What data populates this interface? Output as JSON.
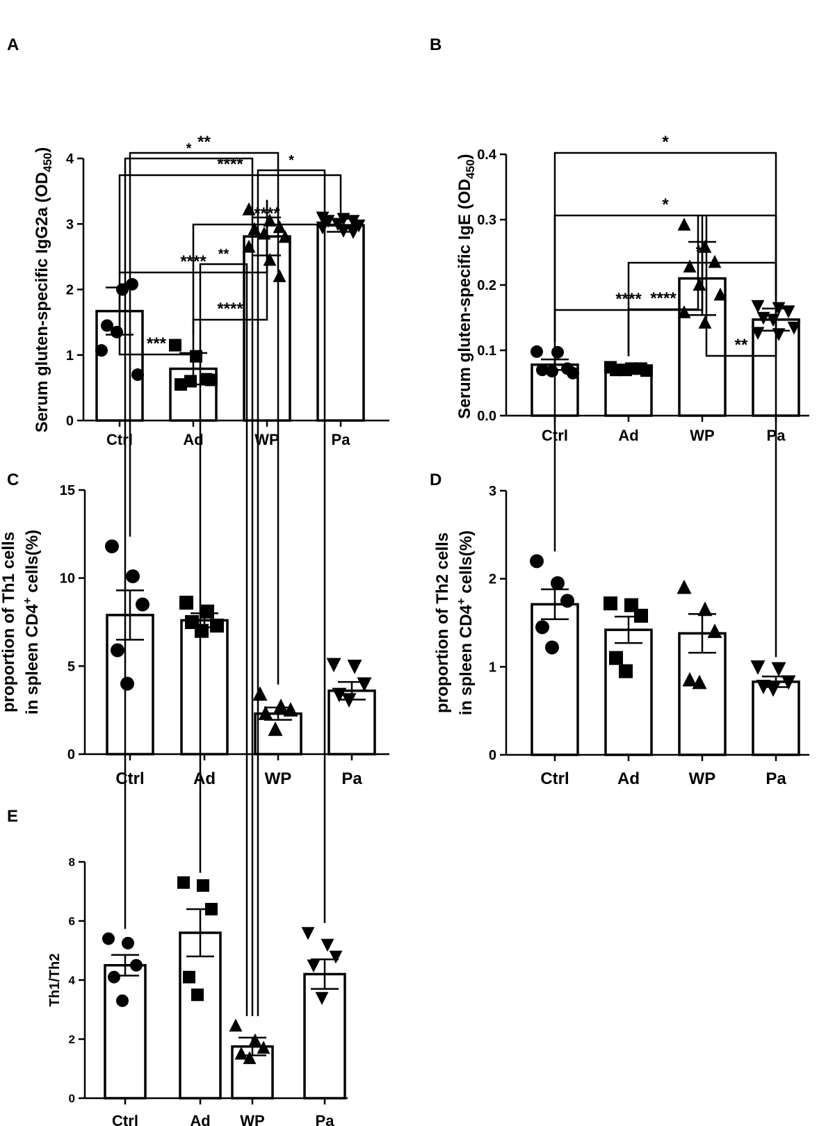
{
  "chart_data": [
    {
      "type": "bar",
      "panel": "A",
      "ylabel_main": "Serum gluten-specific IgG2a (OD",
      "ylabel_sub": "450",
      "ylabel_end": ")",
      "categories": [
        "Ctrl",
        "Ad",
        "WP",
        "Pa"
      ],
      "markers": [
        "circle",
        "square",
        "triangle-up",
        "triangle-down"
      ],
      "ylim": [
        0,
        4
      ],
      "yticks": [
        0,
        1,
        2,
        3,
        4
      ],
      "ytick_labels": [
        "0",
        "1",
        "2",
        "3",
        "4"
      ],
      "means": [
        1.67,
        0.79,
        2.81,
        2.98
      ],
      "sem": [
        0.36,
        0.24,
        0.29,
        0.1
      ],
      "points": [
        [
          1.07,
          2.0,
          2.08,
          1.45,
          1.35,
          0.7
        ],
        [
          1.15,
          0.98,
          0.63,
          0.55,
          0.6,
          0.62
        ],
        [
          3.22,
          3.05,
          2.95,
          2.92,
          2.85,
          2.8,
          2.65,
          2.45,
          2.2
        ],
        [
          3.1,
          3.08,
          3.05,
          3.05,
          3.0,
          2.98,
          2.95,
          2.9,
          2.88
        ]
      ],
      "significance": [
        {
          "from": "Ctrl",
          "to": "Ad",
          "label": "***"
        },
        {
          "from": "Ad",
          "to": "WP",
          "label": "****"
        },
        {
          "from": "Ctrl",
          "to": "WP",
          "label": "****"
        },
        {
          "from": "Ad",
          "to": "Pa",
          "label": "****"
        },
        {
          "from": "Ctrl",
          "to": "Pa",
          "label": "****"
        }
      ]
    },
    {
      "type": "bar",
      "panel": "B",
      "ylabel_main": "Serum gluten-specific IgE (OD",
      "ylabel_sub": "450",
      "ylabel_end": ")",
      "categories": [
        "Ctrl",
        "Ad",
        "WP",
        "Pa"
      ],
      "markers": [
        "circle",
        "square",
        "triangle-up",
        "triangle-down"
      ],
      "ylim": [
        0,
        0.4
      ],
      "yticks": [
        0,
        0.1,
        0.2,
        0.3,
        0.4
      ],
      "ytick_labels": [
        "0.0",
        "0.1",
        "0.2",
        "0.3",
        "0.4"
      ],
      "means": [
        0.078,
        0.072,
        0.21,
        0.147
      ],
      "sem": [
        0.008,
        0.004,
        0.056,
        0.017
      ],
      "points": [
        [
          0.098,
          0.097,
          0.072,
          0.07,
          0.068,
          0.065
        ],
        [
          0.074,
          0.072,
          0.072,
          0.07,
          0.07,
          0.069
        ],
        [
          0.292,
          0.258,
          0.235,
          0.228,
          0.2,
          0.185,
          0.158,
          0.142
        ],
        [
          0.168,
          0.165,
          0.16,
          0.15,
          0.147,
          0.135,
          0.127,
          0.125
        ]
      ],
      "significance": [
        {
          "from": "WP",
          "to": "Pa",
          "label": "**"
        },
        {
          "from": "Ad",
          "to": "WP",
          "label": "****"
        },
        {
          "from": "Ctrl",
          "to": "WP",
          "label": "****"
        },
        {
          "from": "Ad",
          "to": "Pa",
          "label": "**"
        },
        {
          "from": "Ctrl",
          "to": "Pa",
          "label": "*"
        }
      ]
    },
    {
      "type": "bar",
      "panel": "C",
      "ylabel_line1": "proportion of Th1 cells",
      "ylabel_line2": "in spleen CD4",
      "ylabel_sup": "+",
      "ylabel_line2_end": " cells(%)",
      "categories": [
        "Ctrl",
        "Ad",
        "WP",
        "Pa"
      ],
      "markers": [
        "circle",
        "square",
        "triangle-up",
        "triangle-down"
      ],
      "ylim": [
        0,
        15
      ],
      "yticks": [
        0,
        5,
        10,
        15
      ],
      "ytick_labels": [
        "0",
        "5",
        "10",
        "15"
      ],
      "means": [
        7.9,
        7.6,
        2.3,
        3.6
      ],
      "sem": [
        1.4,
        0.4,
        0.35,
        0.5
      ],
      "points": [
        [
          11.8,
          10.1,
          8.5,
          5.9,
          4.0
        ],
        [
          8.6,
          8.1,
          7.3,
          7.5,
          7.0
        ],
        [
          3.4,
          2.7,
          2.5,
          2.3,
          1.4
        ],
        [
          5.1,
          5.0,
          4.0,
          3.4,
          3.1
        ]
      ],
      "significance": [
        {
          "from": "Ctrl",
          "to": "WP",
          "label": "**"
        }
      ]
    },
    {
      "type": "bar",
      "panel": "D",
      "ylabel_line1": "proportion of Th2 cells",
      "ylabel_line2": "in spleen CD4",
      "ylabel_sup": "+",
      "ylabel_line2_end": " cells(%)",
      "categories": [
        "Ctrl",
        "Ad",
        "WP",
        "Pa"
      ],
      "markers": [
        "circle",
        "square",
        "triangle-up",
        "triangle-down"
      ],
      "ylim": [
        0,
        3
      ],
      "yticks": [
        0,
        1,
        2,
        3
      ],
      "ytick_labels": [
        "0",
        "1",
        "2",
        "3"
      ],
      "means": [
        1.71,
        1.42,
        1.38,
        0.83
      ],
      "sem": [
        0.17,
        0.15,
        0.22,
        0.06
      ],
      "points": [
        [
          2.2,
          1.95,
          1.75,
          1.45,
          1.22
        ],
        [
          1.72,
          1.7,
          1.58,
          1.1,
          0.95
        ],
        [
          1.9,
          1.65,
          1.4,
          0.85,
          0.82
        ],
        [
          1.0,
          0.98,
          0.83,
          0.78,
          0.75
        ]
      ],
      "significance": [
        {
          "from": "Ctrl",
          "to": "Pa",
          "label": "*"
        }
      ]
    },
    {
      "type": "bar",
      "panel": "E",
      "ylabel_main": "Th1/Th2",
      "categories": [
        "Ctrl",
        "Ad",
        "WP",
        "Pa"
      ],
      "markers": [
        "circle",
        "square",
        "triangle-up",
        "triangle-down"
      ],
      "ylim": [
        0,
        8
      ],
      "yticks": [
        0,
        2,
        4,
        6,
        8
      ],
      "ytick_labels": [
        "0",
        "2",
        "4",
        "6",
        "8"
      ],
      "means": [
        4.5,
        5.6,
        1.75,
        4.2
      ],
      "sem": [
        0.35,
        0.8,
        0.3,
        0.5
      ],
      "points": [
        [
          5.4,
          5.25,
          4.5,
          4.1,
          3.3
        ],
        [
          7.3,
          7.2,
          6.4,
          4.1,
          3.5
        ],
        [
          2.45,
          1.95,
          1.7,
          1.5,
          1.35
        ],
        [
          5.6,
          5.2,
          4.8,
          4.5,
          3.4
        ]
      ],
      "significance": [
        {
          "from": "Ad",
          "to": "WP",
          "label": "**"
        },
        {
          "from": "WP",
          "to": "Pa",
          "label": "*"
        },
        {
          "from": "Ctrl",
          "to": "WP",
          "label": "*"
        }
      ]
    }
  ]
}
